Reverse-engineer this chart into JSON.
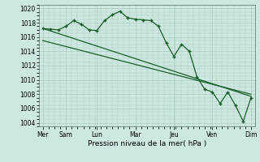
{
  "xlabel": "Pression niveau de la mer( hPa )",
  "bg_color": "#cce8e0",
  "grid_color": "#aaccc4",
  "line_color": "#1a5e2a",
  "x_tick_labels": [
    "Mer",
    "Sam",
    "Lun",
    "Mar",
    "Jeu",
    "Ven",
    "Dim"
  ],
  "x_tick_positions": [
    0,
    3,
    7,
    12,
    17,
    22,
    27
  ],
  "ylim": [
    1003.5,
    1020.5
  ],
  "yticks": [
    1004,
    1006,
    1008,
    1010,
    1012,
    1014,
    1016,
    1018,
    1020
  ],
  "line1_x": [
    0,
    1,
    2,
    3,
    4,
    5,
    6,
    7,
    8,
    9,
    10,
    11,
    12,
    13,
    14,
    15,
    16,
    17,
    18,
    19,
    20,
    21,
    22,
    23,
    24,
    25,
    26,
    27
  ],
  "line1_y": [
    1017.2,
    1017.1,
    1017.0,
    1017.5,
    1018.3,
    1017.8,
    1017.0,
    1016.9,
    1018.3,
    1019.1,
    1019.6,
    1018.7,
    1018.5,
    1018.4,
    1018.3,
    1017.5,
    1015.2,
    1013.3,
    1015.0,
    1014.0,
    1010.4,
    1008.7,
    1008.3,
    1006.7,
    1008.3,
    1006.4,
    1004.2,
    1007.5
  ],
  "line2_x": [
    0,
    27
  ],
  "line2_y": [
    1015.5,
    1008.0
  ],
  "line3_x": [
    0,
    27
  ],
  "line3_y": [
    1017.2,
    1007.7
  ]
}
